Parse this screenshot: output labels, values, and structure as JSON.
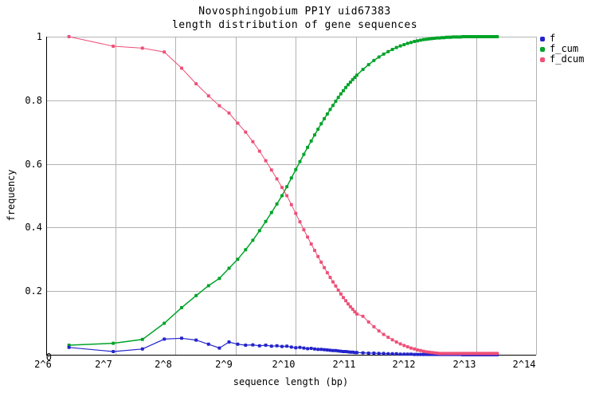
{
  "title": "Novosphingobium PP1Y uid67383",
  "subtitle": "length distribution of gene sequences",
  "chart_data": {
    "type": "line",
    "title": "Novosphingobium PP1Y uid67383",
    "subtitle": "length distribution of gene sequences",
    "xlabel": "sequence length (bp)",
    "ylabel": "frequency",
    "x_scale": "log2",
    "x_range_log2": [
      5.85,
      14.0
    ],
    "ylim": [
      0,
      1
    ],
    "grid": true,
    "legend_position": "outside-top-right",
    "colors": {
      "f": "#2424cc",
      "f_cum": "#00a329",
      "f_dcum": "#ee5078",
      "grid": "#b3b3b3",
      "axis": "#000000",
      "background": "#ffffff"
    },
    "xticks": {
      "labels": [
        "2^6",
        "2^7",
        "2^8",
        "2^9",
        "2^10",
        "2^11",
        "2^12",
        "2^13",
        "2^14"
      ],
      "log2": [
        6,
        7,
        8,
        9,
        10,
        11,
        12,
        13,
        14
      ]
    },
    "yticks": {
      "labels": [
        "0",
        "0.2",
        "0.4",
        "0.6",
        "0.8",
        "1"
      ],
      "values": [
        0,
        0.2,
        0.4,
        0.6,
        0.8,
        1
      ]
    },
    "x_bp": [
      75,
      125,
      175,
      225,
      275,
      325,
      375,
      425,
      475,
      525,
      575,
      625,
      675,
      725,
      775,
      825,
      875,
      925,
      975,
      1025,
      1075,
      1125,
      1175,
      1225,
      1275,
      1325,
      1375,
      1425,
      1475,
      1525,
      1575,
      1625,
      1675,
      1725,
      1775,
      1825,
      1875,
      1925,
      1975,
      2025,
      2075,
      2225,
      2375,
      2525,
      2675,
      2825,
      2975,
      3125,
      3275,
      3425,
      3575,
      3725,
      3875,
      4025,
      4175,
      4325,
      4475,
      4625,
      4775,
      4925,
      5075,
      5225,
      5375,
      5525,
      5675,
      5825,
      5975,
      6125,
      6275,
      6425,
      6575,
      6725,
      6875,
      7025,
      7175,
      7325,
      7475,
      7625,
      7775,
      7925,
      8075,
      8225,
      8375,
      8525,
      8675,
      8825,
      8975,
      9125,
      9275,
      9425,
      9575,
      9725,
      9875,
      10025,
      10175,
      10325,
      10475
    ],
    "series": [
      {
        "name": "f",
        "color": "#2424cc",
        "values": [
          0.023,
          0.01,
          0.018,
          0.049,
          0.052,
          0.046,
          0.033,
          0.021,
          0.04,
          0.033,
          0.03,
          0.031,
          0.028,
          0.03,
          0.027,
          0.028,
          0.026,
          0.027,
          0.024,
          0.022,
          0.023,
          0.021,
          0.019,
          0.02,
          0.018,
          0.017,
          0.017,
          0.016,
          0.015,
          0.014,
          0.013,
          0.013,
          0.012,
          0.011,
          0.01,
          0.01,
          0.009,
          0.008,
          0.008,
          0.007,
          0.007,
          0.006,
          0.005,
          0.005,
          0.004,
          0.004,
          0.003,
          0.003,
          0.003,
          0.002,
          0.002,
          0.002,
          0.002,
          0.001,
          0.001,
          0.001,
          0.001,
          0.001,
          0.001,
          0.001,
          0.001,
          0.001,
          0.001,
          0.001,
          0.001,
          0.001,
          0.001,
          0.001,
          0.001,
          0.001,
          0.001,
          0.001,
          0.001,
          0.0,
          0.0,
          0.0,
          0.0,
          0.0,
          0.0,
          0.0,
          0.0,
          0.0,
          0.0,
          0.0,
          0.0,
          0.0,
          0.0,
          0.0,
          0.0,
          0.0,
          0.0,
          0.0,
          0.0,
          0.0,
          0.0,
          0.0,
          0.0
        ]
      },
      {
        "name": "f_cum",
        "color": "#00a329",
        "values": [
          0.03,
          0.036,
          0.048,
          0.099,
          0.148,
          0.186,
          0.217,
          0.24,
          0.272,
          0.3,
          0.33,
          0.36,
          0.39,
          0.419,
          0.447,
          0.474,
          0.5,
          0.528,
          0.556,
          0.582,
          0.607,
          0.63,
          0.652,
          0.672,
          0.691,
          0.709,
          0.726,
          0.742,
          0.757,
          0.771,
          0.784,
          0.797,
          0.809,
          0.82,
          0.83,
          0.84,
          0.849,
          0.857,
          0.865,
          0.872,
          0.879,
          0.897,
          0.912,
          0.925,
          0.936,
          0.945,
          0.953,
          0.96,
          0.966,
          0.971,
          0.975,
          0.979,
          0.982,
          0.985,
          0.987,
          0.989,
          0.991,
          0.992,
          0.993,
          0.994,
          0.995,
          0.996,
          0.996,
          0.997,
          0.997,
          0.998,
          0.998,
          0.998,
          0.999,
          0.999,
          0.999,
          0.999,
          0.999,
          1.0,
          1.0,
          1.0,
          1.0,
          1.0,
          1.0,
          1.0,
          1.0,
          1.0,
          1.0,
          1.0,
          1.0,
          1.0,
          1.0,
          1.0,
          1.0,
          1.0,
          1.0,
          1.0,
          1.0,
          1.0,
          1.0,
          1.0,
          1.0
        ]
      },
      {
        "name": "f_dcum",
        "color": "#ee5078",
        "values": [
          1.0,
          0.97,
          0.964,
          0.952,
          0.901,
          0.852,
          0.814,
          0.783,
          0.76,
          0.728,
          0.7,
          0.67,
          0.64,
          0.61,
          0.581,
          0.553,
          0.526,
          0.5,
          0.472,
          0.444,
          0.418,
          0.393,
          0.37,
          0.348,
          0.328,
          0.309,
          0.291,
          0.274,
          0.258,
          0.243,
          0.229,
          0.216,
          0.203,
          0.191,
          0.18,
          0.17,
          0.16,
          0.151,
          0.143,
          0.135,
          0.128,
          0.121,
          0.103,
          0.088,
          0.075,
          0.064,
          0.055,
          0.047,
          0.04,
          0.034,
          0.029,
          0.025,
          0.021,
          0.018,
          0.015,
          0.013,
          0.011,
          0.009,
          0.008,
          0.007,
          0.006,
          0.005,
          0.004,
          0.004,
          0.004,
          0.004,
          0.004,
          0.004,
          0.004,
          0.004,
          0.004,
          0.004,
          0.004,
          0.004,
          0.004,
          0.004,
          0.004,
          0.004,
          0.004,
          0.004,
          0.004,
          0.004,
          0.004,
          0.004,
          0.004,
          0.004,
          0.004,
          0.004,
          0.004,
          0.004,
          0.004,
          0.004,
          0.004,
          0.004,
          0.004,
          0.004,
          0.004
        ]
      }
    ]
  }
}
